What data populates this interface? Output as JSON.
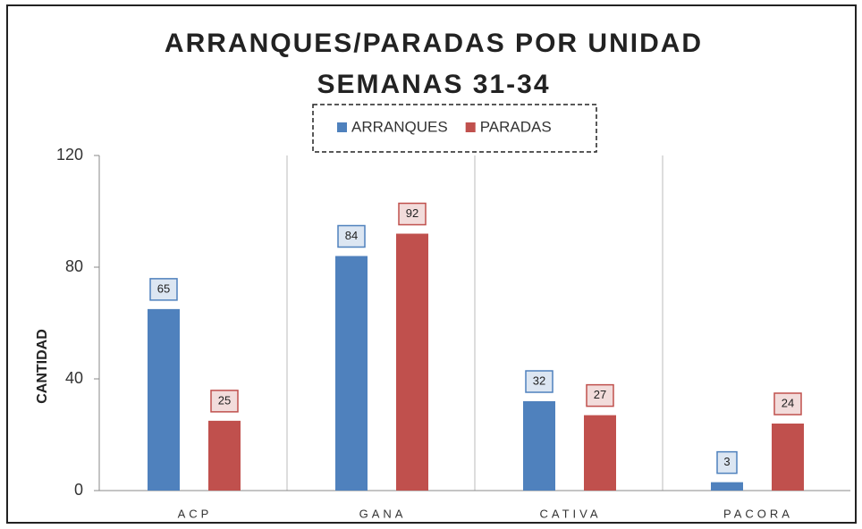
{
  "chart_data": {
    "type": "bar",
    "title": "ARRANQUES/PARADAS POR UNIDAD",
    "subtitle": "SEMANAS 31-34",
    "y_label": "CANTIDAD",
    "categories": [
      "ACP",
      "GANA",
      "CATIVA",
      "PACORA"
    ],
    "series": [
      {
        "name": "ARRANQUES",
        "color": "#4f81bd",
        "values": [
          65,
          84,
          32,
          3
        ]
      },
      {
        "name": "PARADAS",
        "color": "#c0504d",
        "values": [
          25,
          92,
          27,
          24
        ]
      }
    ],
    "ylim": [
      0,
      120
    ],
    "yticks": [
      0,
      40,
      80,
      120
    ],
    "legend": "top"
  }
}
